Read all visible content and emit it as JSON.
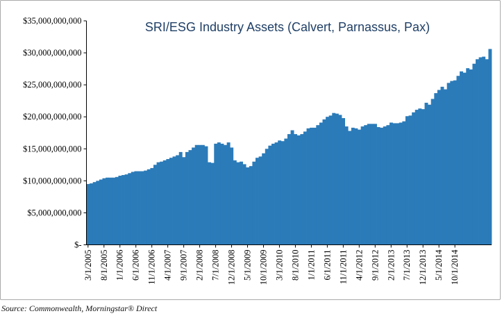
{
  "chart_data": {
    "type": "area",
    "title": "SRI/ESG Industry Assets (Calvert, Parnassus, Pax)",
    "xlabel": "",
    "ylabel": "",
    "ylim": [
      0,
      35000000000
    ],
    "grid": false,
    "legend": "none",
    "color": "#2b7bb9",
    "y_ticks": [
      0,
      5000000000,
      10000000000,
      15000000000,
      20000000000,
      25000000000,
      30000000000,
      35000000000
    ],
    "y_tick_labels": [
      "$-",
      "$5,000,000,000",
      "$10,000,000,000",
      "$15,000,000,000",
      "$20,000,000,000",
      "$25,000,000,000",
      "$30,000,000,000",
      "$35,000,000,000"
    ],
    "x_tick_labels": [
      "3/1/2005",
      "8/1/2005",
      "1/1/2006",
      "6/1/2006",
      "11/1/2006",
      "4/1/2007",
      "9/1/2007",
      "2/1/2008",
      "7/1/2008",
      "12/1/2008",
      "5/1/2009",
      "10/1/2009",
      "3/1/2010",
      "8/1/2010",
      "1/1/2011",
      "6/1/2011",
      "11/1/2011",
      "4/1/2012",
      "9/1/2012",
      "2/1/2013",
      "7/1/2013",
      "12/1/2013",
      "5/1/2014",
      "10/1/2014"
    ],
    "x_tick_interval_months": 5,
    "values_billions": [
      9.5,
      9.6,
      9.8,
      10.0,
      10.2,
      10.4,
      10.5,
      10.5,
      10.5,
      10.6,
      10.8,
      10.9,
      11.0,
      11.2,
      11.4,
      11.5,
      11.5,
      11.5,
      11.6,
      11.8,
      12.0,
      12.5,
      12.9,
      13.0,
      13.2,
      13.4,
      13.6,
      13.8,
      14.0,
      14.5,
      13.7,
      14.5,
      14.8,
      15.2,
      15.6,
      15.6,
      15.6,
      15.4,
      12.9,
      12.8,
      15.8,
      16.0,
      15.8,
      15.6,
      16.0,
      15.2,
      13.2,
      12.9,
      13.0,
      12.6,
      12.1,
      12.3,
      13.0,
      13.6,
      13.8,
      14.3,
      15.0,
      15.5,
      15.8,
      16.0,
      16.3,
      16.2,
      16.6,
      17.3,
      17.9,
      17.3,
      17.1,
      17.3,
      17.7,
      18.2,
      18.3,
      18.3,
      18.7,
      19.1,
      19.6,
      20.0,
      20.2,
      20.6,
      20.5,
      20.3,
      19.8,
      18.5,
      17.8,
      18.3,
      18.2,
      18.0,
      18.5,
      18.7,
      18.9,
      18.9,
      18.9,
      18.4,
      18.3,
      18.5,
      18.7,
      19.1,
      19.0,
      19.0,
      19.1,
      19.3,
      20.1,
      20.2,
      20.7,
      21.1,
      21.3,
      21.2,
      22.2,
      21.9,
      22.8,
      23.7,
      24.2,
      24.7,
      24.3,
      25.3,
      25.6,
      25.7,
      26.4,
      27.1,
      26.9,
      27.6,
      27.4,
      28.3,
      29.0,
      29.3,
      29.4,
      29.0,
      30.6
    ],
    "unit_note": "values in billions of USD, monthly from 3/1/2005"
  },
  "source": "Source: Commonwealth, Morningstar® Direct"
}
